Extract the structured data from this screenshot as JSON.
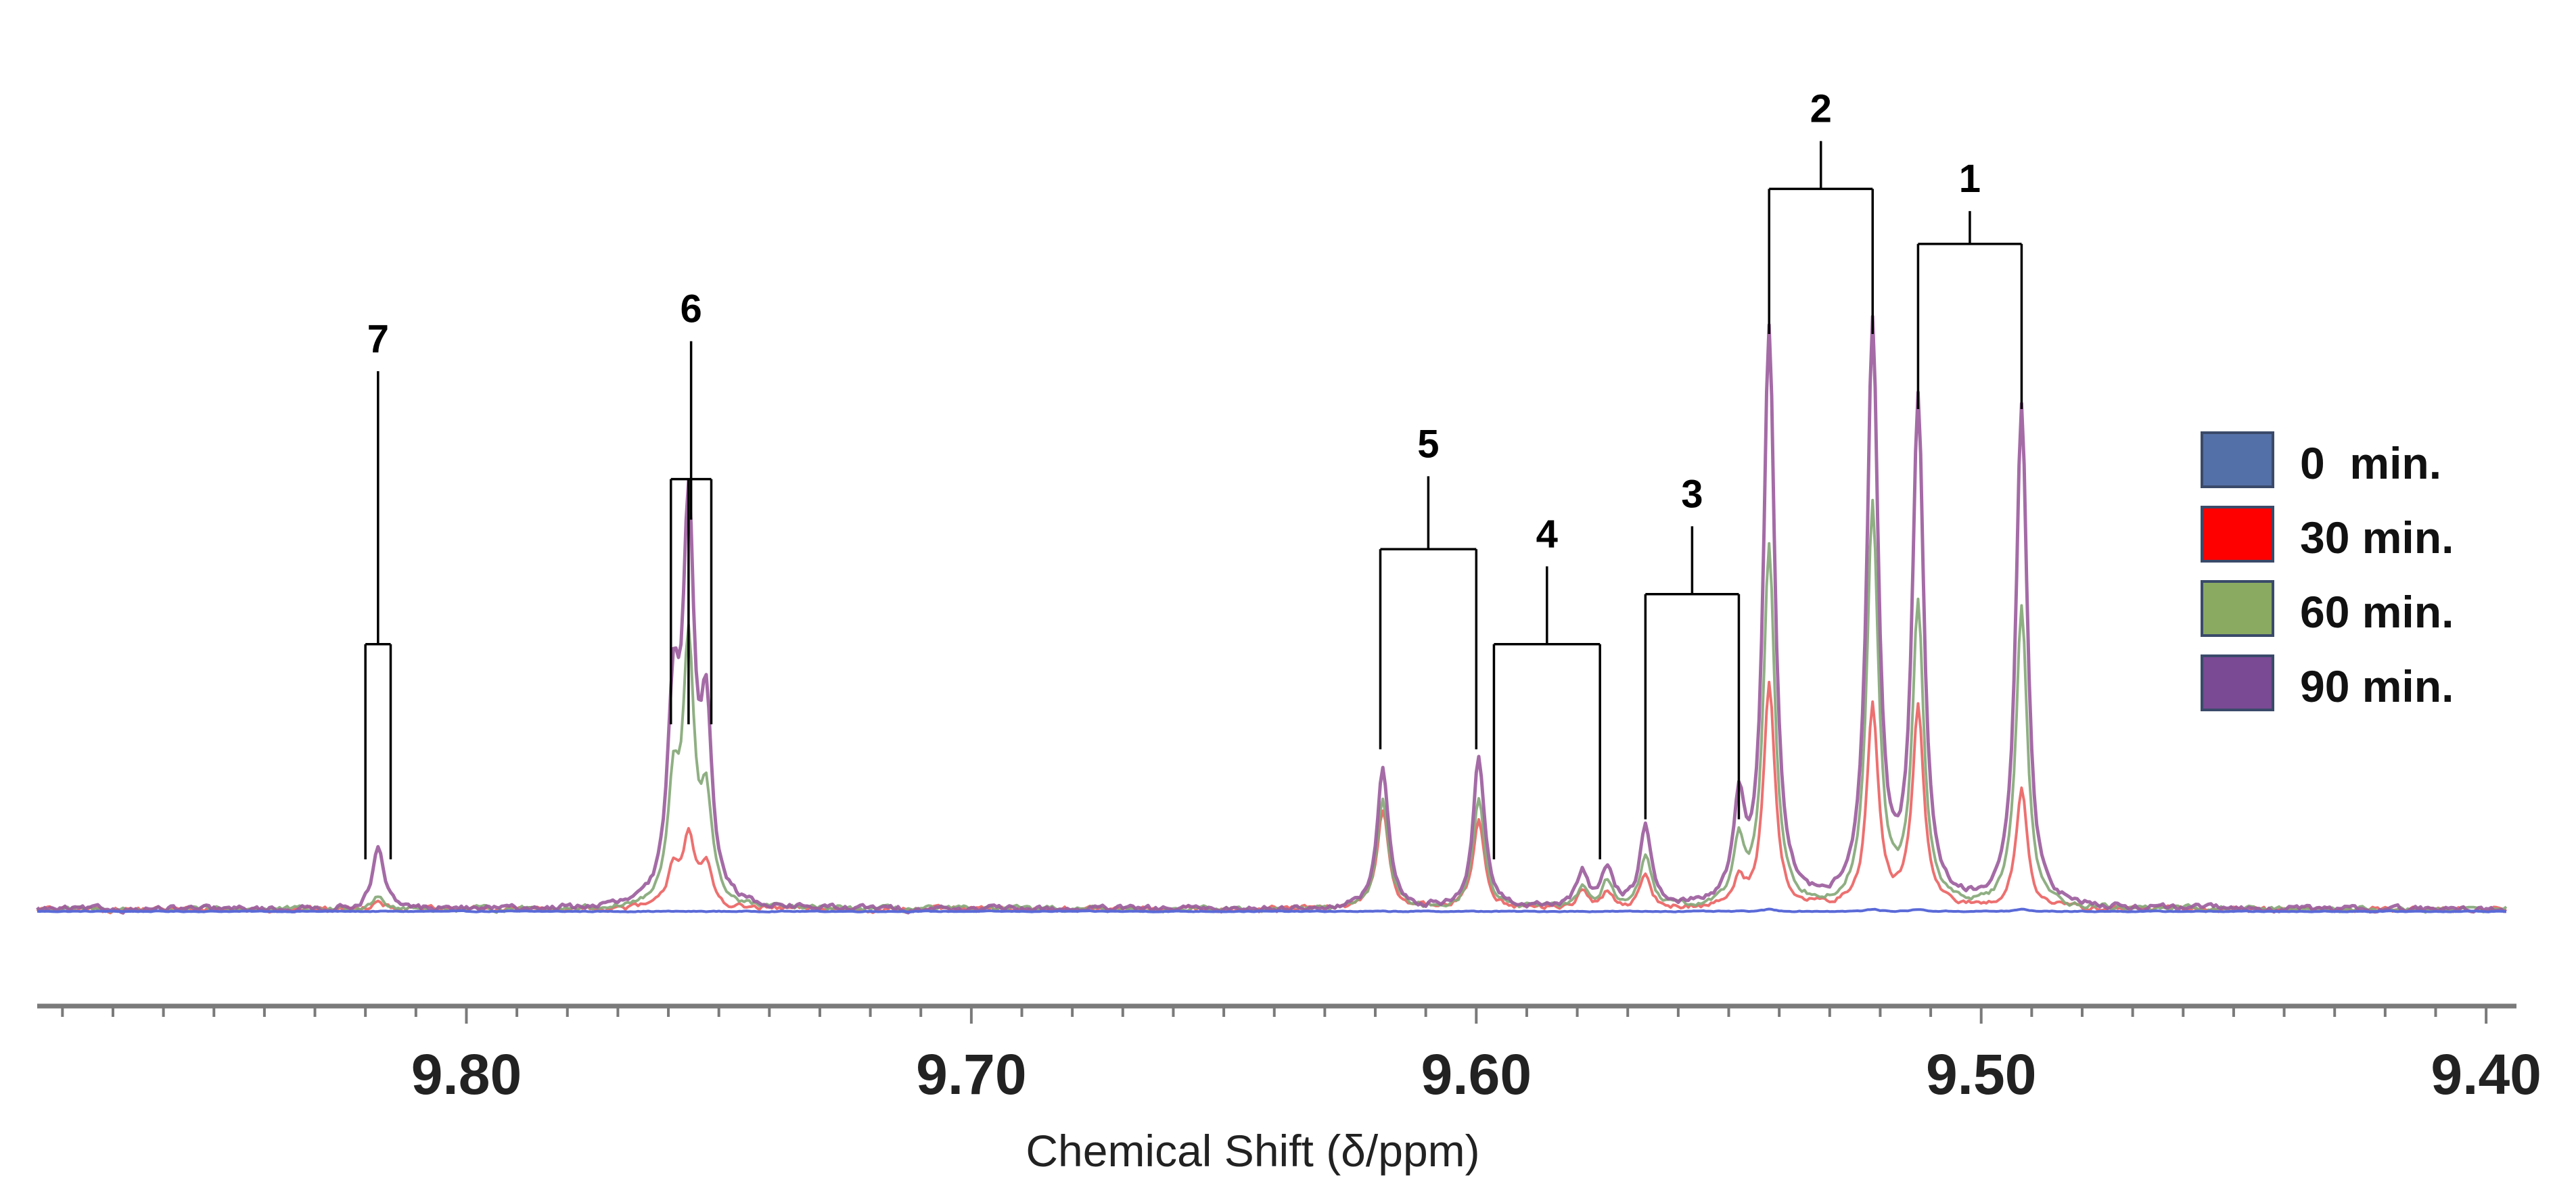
{
  "chart_data": {
    "type": "line",
    "xlabel": "Chemical Shift (δ/ppm)",
    "xlim": [
      9.885,
      9.396
    ],
    "x_reversed": true,
    "x_ticks": [
      9.8,
      9.7,
      9.6,
      9.5,
      9.4
    ],
    "x_tick_labels": [
      "9.80",
      "9.70",
      "9.60",
      "9.50",
      "9.40"
    ],
    "ylim": [
      0,
      1.3
    ],
    "legend_position": "right",
    "series": [
      {
        "name": "0  min.",
        "swatch_color": "#5470a8",
        "line_color": "#5a6ad8",
        "baseline": -0.004,
        "noise": 0.0015,
        "peaks": [
          [
            9.542,
            0.004
          ],
          [
            9.5215,
            0.004
          ],
          [
            9.5125,
            0.004
          ],
          [
            9.492,
            0.004
          ]
        ]
      },
      {
        "name": "30 min.",
        "swatch_color": "#ff0000",
        "line_color": "#ec6464",
        "baseline": 0.0,
        "noise": 0.01,
        "peaks": [
          [
            9.8175,
            0.02
          ],
          [
            9.759,
            0.08
          ],
          [
            9.756,
            0.14
          ],
          [
            9.7525,
            0.08
          ],
          [
            9.6185,
            0.2
          ],
          [
            9.5995,
            0.18
          ],
          [
            9.579,
            0.03
          ],
          [
            9.574,
            0.03
          ],
          [
            9.5665,
            0.06
          ],
          [
            9.548,
            0.05
          ],
          [
            9.542,
            0.45
          ],
          [
            9.5215,
            0.4
          ],
          [
            9.5125,
            0.4
          ],
          [
            9.492,
            0.24
          ]
        ]
      },
      {
        "name": "60 min.",
        "swatch_color": "#8aaa62",
        "line_color": "#86a878",
        "baseline": 0.0,
        "noise": 0.01,
        "peaks": [
          [
            9.8175,
            0.03
          ],
          [
            9.759,
            0.22
          ],
          [
            9.756,
            0.5
          ],
          [
            9.7525,
            0.2
          ],
          [
            9.6185,
            0.22
          ],
          [
            9.5995,
            0.22
          ],
          [
            9.579,
            0.04
          ],
          [
            9.574,
            0.05
          ],
          [
            9.5665,
            0.1
          ],
          [
            9.548,
            0.12
          ],
          [
            9.542,
            0.72
          ],
          [
            9.5215,
            0.8
          ],
          [
            9.5125,
            0.6
          ],
          [
            9.492,
            0.6
          ]
        ]
      },
      {
        "name": "90 min.",
        "swatch_color": "#7a4a94",
        "line_color": "#9c5e9e",
        "baseline": 0.0,
        "noise": 0.011,
        "peaks": [
          [
            9.8175,
            0.12
          ],
          [
            9.759,
            0.38
          ],
          [
            9.756,
            0.75
          ],
          [
            9.7525,
            0.36
          ],
          [
            9.6185,
            0.28
          ],
          [
            9.5995,
            0.3
          ],
          [
            9.579,
            0.07
          ],
          [
            9.574,
            0.08
          ],
          [
            9.5665,
            0.16
          ],
          [
            9.548,
            0.19
          ],
          [
            9.542,
            1.15
          ],
          [
            9.5215,
            1.15
          ],
          [
            9.5125,
            1.0
          ],
          [
            9.492,
            1.0
          ]
        ]
      }
    ],
    "annotations": [
      {
        "label": "1",
        "stick_x": [
          9.5125,
          9.492
        ],
        "bracket_y": 1.33,
        "tip_y": 1.0,
        "label_y": 1.42
      },
      {
        "label": "2",
        "stick_x": [
          9.542,
          9.5215
        ],
        "bracket_y": 1.44,
        "tip_y": 1.15,
        "label_y": 1.56
      },
      {
        "label": "3",
        "stick_x": [
          9.5665,
          9.548
        ],
        "bracket_y": 0.63,
        "tip_y": 0.18,
        "label_y": 0.79
      },
      {
        "label": "4",
        "stick_x": [
          9.5965,
          9.5755
        ],
        "bracket_y": 0.53,
        "tip_y": 0.1,
        "label_y": 0.71
      },
      {
        "label": "5",
        "stick_x": [
          9.619,
          9.6
        ],
        "bracket_y": 0.72,
        "tip_y": 0.32,
        "label_y": 0.89
      },
      {
        "label": "6",
        "stick_x": [
          9.7595,
          9.756,
          9.7515
        ],
        "bracket_y": 0.86,
        "tip_y": 0.37,
        "label_y": 1.16
      },
      {
        "label": "7",
        "stick_x": [
          9.82,
          9.815
        ],
        "bracket_y": 0.53,
        "tip_y": 0.1,
        "label_y": 1.1
      }
    ]
  }
}
